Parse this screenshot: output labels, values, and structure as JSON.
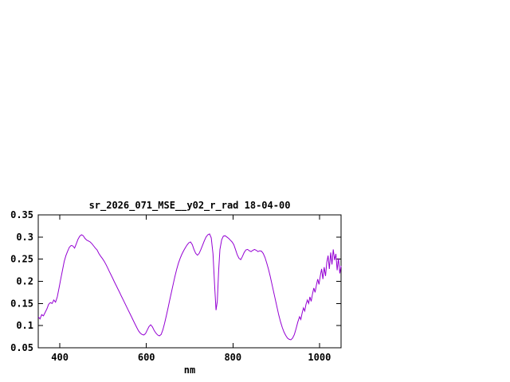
{
  "window": {
    "background_color": "#ffffff"
  },
  "chart_data": {
    "type": "line",
    "title": "sr_2026_071_MSE__y02_r_rad 18-04-00",
    "xlabel": "nm",
    "ylabel": "",
    "xlim": [
      350,
      1050
    ],
    "ylim": [
      0.05,
      0.35
    ],
    "grid": false,
    "legend_position": "none",
    "axis_color": "#000000",
    "text_color": "#000000",
    "line_color": "#9400d3",
    "xticks": [
      {
        "v": 400,
        "label": "400"
      },
      {
        "v": 600,
        "label": "600"
      },
      {
        "v": 800,
        "label": "800"
      },
      {
        "v": 1000,
        "label": "1000"
      }
    ],
    "yticks": [
      {
        "v": 0.05,
        "label": "0.05"
      },
      {
        "v": 0.1,
        "label": "0.1"
      },
      {
        "v": 0.15,
        "label": "0.15"
      },
      {
        "v": 0.2,
        "label": "0.2"
      },
      {
        "v": 0.25,
        "label": "0.25"
      },
      {
        "v": 0.3,
        "label": "0.3"
      },
      {
        "v": 0.35,
        "label": "0.35"
      }
    ],
    "series": [
      {
        "name": "sr_2026_071_MSE__y02_r_rad",
        "points": [
          [
            350,
            0.12
          ],
          [
            354,
            0.115
          ],
          [
            358,
            0.125
          ],
          [
            362,
            0.122
          ],
          [
            366,
            0.13
          ],
          [
            370,
            0.138
          ],
          [
            374,
            0.148
          ],
          [
            378,
            0.152
          ],
          [
            382,
            0.15
          ],
          [
            386,
            0.158
          ],
          [
            390,
            0.153
          ],
          [
            394,
            0.165
          ],
          [
            398,
            0.185
          ],
          [
            402,
            0.205
          ],
          [
            406,
            0.225
          ],
          [
            410,
            0.245
          ],
          [
            414,
            0.258
          ],
          [
            418,
            0.268
          ],
          [
            422,
            0.277
          ],
          [
            426,
            0.281
          ],
          [
            430,
            0.28
          ],
          [
            434,
            0.275
          ],
          [
            438,
            0.285
          ],
          [
            442,
            0.295
          ],
          [
            446,
            0.302
          ],
          [
            450,
            0.305
          ],
          [
            454,
            0.303
          ],
          [
            458,
            0.297
          ],
          [
            462,
            0.293
          ],
          [
            466,
            0.291
          ],
          [
            470,
            0.289
          ],
          [
            474,
            0.285
          ],
          [
            478,
            0.28
          ],
          [
            482,
            0.275
          ],
          [
            486,
            0.271
          ],
          [
            490,
            0.263
          ],
          [
            494,
            0.257
          ],
          [
            498,
            0.252
          ],
          [
            502,
            0.246
          ],
          [
            506,
            0.239
          ],
          [
            510,
            0.231
          ],
          [
            514,
            0.223
          ],
          [
            518,
            0.215
          ],
          [
            522,
            0.207
          ],
          [
            526,
            0.199
          ],
          [
            530,
            0.191
          ],
          [
            534,
            0.183
          ],
          [
            538,
            0.175
          ],
          [
            542,
            0.167
          ],
          [
            546,
            0.159
          ],
          [
            550,
            0.151
          ],
          [
            554,
            0.143
          ],
          [
            558,
            0.135
          ],
          [
            562,
            0.127
          ],
          [
            566,
            0.119
          ],
          [
            570,
            0.111
          ],
          [
            574,
            0.103
          ],
          [
            578,
            0.095
          ],
          [
            582,
            0.088
          ],
          [
            586,
            0.083
          ],
          [
            590,
            0.08
          ],
          [
            594,
            0.079
          ],
          [
            598,
            0.082
          ],
          [
            602,
            0.09
          ],
          [
            606,
            0.098
          ],
          [
            610,
            0.102
          ],
          [
            614,
            0.097
          ],
          [
            618,
            0.089
          ],
          [
            622,
            0.083
          ],
          [
            626,
            0.079
          ],
          [
            630,
            0.077
          ],
          [
            634,
            0.08
          ],
          [
            638,
            0.09
          ],
          [
            642,
            0.105
          ],
          [
            646,
            0.122
          ],
          [
            650,
            0.14
          ],
          [
            654,
            0.158
          ],
          [
            658,
            0.176
          ],
          [
            662,
            0.194
          ],
          [
            666,
            0.211
          ],
          [
            670,
            0.227
          ],
          [
            674,
            0.241
          ],
          [
            678,
            0.252
          ],
          [
            682,
            0.261
          ],
          [
            686,
            0.269
          ],
          [
            690,
            0.276
          ],
          [
            694,
            0.282
          ],
          [
            698,
            0.287
          ],
          [
            702,
            0.289
          ],
          [
            706,
            0.283
          ],
          [
            710,
            0.272
          ],
          [
            714,
            0.263
          ],
          [
            718,
            0.259
          ],
          [
            722,
            0.263
          ],
          [
            726,
            0.272
          ],
          [
            730,
            0.282
          ],
          [
            734,
            0.292
          ],
          [
            738,
            0.3
          ],
          [
            742,
            0.305
          ],
          [
            746,
            0.307
          ],
          [
            750,
            0.298
          ],
          [
            754,
            0.262
          ],
          [
            758,
            0.185
          ],
          [
            761,
            0.135
          ],
          [
            764,
            0.155
          ],
          [
            767,
            0.225
          ],
          [
            770,
            0.272
          ],
          [
            774,
            0.294
          ],
          [
            778,
            0.302
          ],
          [
            782,
            0.303
          ],
          [
            786,
            0.3
          ],
          [
            790,
            0.297
          ],
          [
            794,
            0.293
          ],
          [
            798,
            0.289
          ],
          [
            802,
            0.283
          ],
          [
            806,
            0.272
          ],
          [
            810,
            0.26
          ],
          [
            814,
            0.252
          ],
          [
            818,
            0.249
          ],
          [
            822,
            0.256
          ],
          [
            826,
            0.265
          ],
          [
            830,
            0.271
          ],
          [
            834,
            0.272
          ],
          [
            838,
            0.269
          ],
          [
            842,
            0.267
          ],
          [
            846,
            0.27
          ],
          [
            850,
            0.272
          ],
          [
            854,
            0.27
          ],
          [
            858,
            0.267
          ],
          [
            862,
            0.269
          ],
          [
            866,
            0.268
          ],
          [
            870,
            0.263
          ],
          [
            874,
            0.254
          ],
          [
            878,
            0.242
          ],
          [
            882,
            0.228
          ],
          [
            886,
            0.212
          ],
          [
            890,
            0.195
          ],
          [
            894,
            0.177
          ],
          [
            898,
            0.159
          ],
          [
            902,
            0.141
          ],
          [
            906,
            0.124
          ],
          [
            910,
            0.109
          ],
          [
            914,
            0.096
          ],
          [
            918,
            0.086
          ],
          [
            922,
            0.078
          ],
          [
            926,
            0.072
          ],
          [
            930,
            0.069
          ],
          [
            934,
            0.068
          ],
          [
            938,
            0.072
          ],
          [
            942,
            0.08
          ],
          [
            946,
            0.093
          ],
          [
            950,
            0.108
          ],
          [
            954,
            0.12
          ],
          [
            957,
            0.114
          ],
          [
            960,
            0.128
          ],
          [
            963,
            0.14
          ],
          [
            966,
            0.133
          ],
          [
            969,
            0.148
          ],
          [
            972,
            0.158
          ],
          [
            975,
            0.15
          ],
          [
            978,
            0.165
          ],
          [
            981,
            0.155
          ],
          [
            984,
            0.172
          ],
          [
            987,
            0.185
          ],
          [
            990,
            0.175
          ],
          [
            993,
            0.192
          ],
          [
            996,
            0.205
          ],
          [
            999,
            0.193
          ],
          [
            1002,
            0.212
          ],
          [
            1005,
            0.228
          ],
          [
            1008,
            0.205
          ],
          [
            1011,
            0.232
          ],
          [
            1014,
            0.212
          ],
          [
            1017,
            0.243
          ],
          [
            1020,
            0.258
          ],
          [
            1023,
            0.228
          ],
          [
            1026,
            0.265
          ],
          [
            1029,
            0.238
          ],
          [
            1032,
            0.272
          ],
          [
            1035,
            0.248
          ],
          [
            1038,
            0.262
          ],
          [
            1041,
            0.225
          ],
          [
            1044,
            0.252
          ],
          [
            1047,
            0.218
          ],
          [
            1050,
            0.235
          ]
        ]
      }
    ]
  }
}
